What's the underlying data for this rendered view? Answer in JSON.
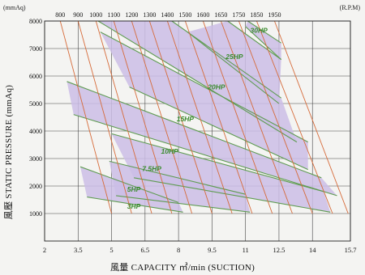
{
  "chart_data": {
    "type": "line",
    "x_unit": "(m³/min)",
    "y_unit": "(mmAq)",
    "rpm_unit": "(R.P.M)",
    "x_ticks": [
      "2",
      "3.5",
      "5",
      "6.5",
      "8",
      "9.5",
      "11",
      "12.5",
      "14",
      "15.7"
    ],
    "x_tick_values": [
      2,
      3.5,
      5,
      6.5,
      8,
      9.5,
      11,
      12.5,
      14,
      15.7
    ],
    "y_ticks": [
      "1000",
      "2000",
      "3000",
      "4000",
      "5000",
      "6000",
      "7000",
      "8000"
    ],
    "y_tick_values": [
      1000,
      2000,
      3000,
      4000,
      5000,
      6000,
      7000,
      8000
    ],
    "xlim": [
      2,
      15.7
    ],
    "ylim": [
      0,
      8000
    ],
    "xlabel": "風量 CAPACITY ㎥/min (SUCTION)",
    "ylabel": "風壓 STATIC PRESSURE (mmAq)",
    "rpm_lines": [
      {
        "label": "800",
        "pts": [
          [
            2.7,
            8000
          ],
          [
            5.0,
            1000
          ]
        ]
      },
      {
        "label": "900",
        "pts": [
          [
            3.5,
            8000
          ],
          [
            5.9,
            1000
          ]
        ]
      },
      {
        "label": "1000",
        "pts": [
          [
            4.3,
            8000
          ],
          [
            6.8,
            1000
          ]
        ]
      },
      {
        "label": "1100",
        "pts": [
          [
            5.1,
            8000
          ],
          [
            7.7,
            1000
          ]
        ]
      },
      {
        "label": "1200",
        "pts": [
          [
            5.9,
            8000
          ],
          [
            8.6,
            1000
          ]
        ]
      },
      {
        "label": "1300",
        "pts": [
          [
            6.7,
            8000
          ],
          [
            9.5,
            1000
          ]
        ]
      },
      {
        "label": "1400",
        "pts": [
          [
            7.5,
            8000
          ],
          [
            10.4,
            1000
          ]
        ]
      },
      {
        "label": "1500",
        "pts": [
          [
            8.3,
            8000
          ],
          [
            11.3,
            1000
          ]
        ]
      },
      {
        "label": "1600",
        "pts": [
          [
            9.1,
            8000
          ],
          [
            12.2,
            1000
          ]
        ]
      },
      {
        "label": "1650",
        "pts": [
          [
            9.9,
            8000
          ],
          [
            13.1,
            1000
          ]
        ]
      },
      {
        "label": "1750",
        "pts": [
          [
            10.7,
            8000
          ],
          [
            14.0,
            1000
          ]
        ]
      },
      {
        "label": "1850",
        "pts": [
          [
            11.5,
            8000
          ],
          [
            14.9,
            1000
          ]
        ]
      },
      {
        "label": "1950",
        "pts": [
          [
            12.3,
            8000
          ],
          [
            15.6,
            1000
          ]
        ]
      }
    ],
    "bands": [
      {
        "name": "3HP",
        "low": [
          [
            3.9,
            1600
          ],
          [
            8.2,
            1050
          ]
        ],
        "high": [
          [
            3.6,
            2700
          ],
          [
            8.0,
            1400
          ]
        ]
      },
      {
        "name": "5HP",
        "low": [
          [
            5.2,
            1650
          ],
          [
            11.2,
            1050
          ]
        ],
        "high": [
          [
            4.9,
            2900
          ],
          [
            11.0,
            1700
          ]
        ]
      },
      {
        "name": "7.5HP",
        "low": [
          [
            6.0,
            2300
          ],
          [
            14.8,
            1050
          ]
        ],
        "high": [
          [
            5.0,
            3900
          ],
          [
            14.5,
            1800
          ]
        ]
      },
      {
        "name": "10HP",
        "low": [
          [
            3.3,
            4600
          ],
          [
            15.1,
            1650
          ]
        ],
        "high": [
          [
            3.0,
            5800
          ],
          [
            14.4,
            2300
          ]
        ]
      },
      {
        "name": "15HP",
        "low": [
          [
            5.8,
            5600
          ],
          [
            13.8,
            2600
          ]
        ],
        "high": [
          [
            4.5,
            7600
          ],
          [
            13.8,
            3600
          ]
        ]
      },
      {
        "name": "20HP",
        "low": [
          [
            4.4,
            8000
          ],
          [
            13.3,
            3600
          ]
        ],
        "high": [
          [
            7.7,
            8000
          ],
          [
            12.6,
            5200
          ]
        ]
      },
      {
        "name": "25HP",
        "low": [
          [
            8.4,
            7600
          ],
          [
            12.5,
            5000
          ]
        ],
        "high": [
          [
            10.2,
            8000
          ],
          [
            12.6,
            6600
          ]
        ]
      },
      {
        "name": "30HP",
        "low": [
          [
            11.0,
            7800
          ],
          [
            12.6,
            6600
          ]
        ],
        "high": [
          [
            11.1,
            8000
          ],
          [
            12.6,
            7200
          ]
        ]
      }
    ],
    "labels": [
      {
        "text": "3HP",
        "x": 6.0,
        "y": 1180
      },
      {
        "text": "5HP",
        "x": 6.0,
        "y": 1800
      },
      {
        "text": "7.5HP",
        "x": 6.8,
        "y": 2550
      },
      {
        "text": "10HP",
        "x": 7.6,
        "y": 3180
      },
      {
        "text": "15HP",
        "x": 8.3,
        "y": 4350
      },
      {
        "text": "20HP",
        "x": 9.7,
        "y": 5520
      },
      {
        "text": "25HP",
        "x": 10.5,
        "y": 6620
      },
      {
        "text": "30HP",
        "x": 11.6,
        "y": 7580
      }
    ],
    "colors": {
      "fill": "#cbbde6",
      "hp_line": "#5f9c52",
      "rpm_line": "#d66b3a",
      "grid": "#444444",
      "label": "#3a8b2e"
    }
  }
}
